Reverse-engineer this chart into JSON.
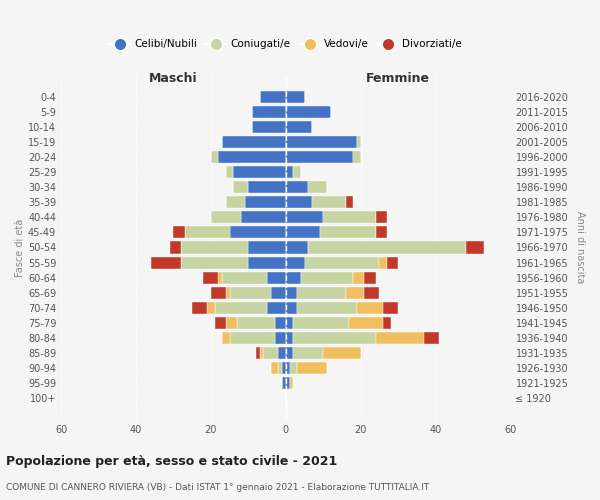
{
  "age_groups": [
    "100+",
    "95-99",
    "90-94",
    "85-89",
    "80-84",
    "75-79",
    "70-74",
    "65-69",
    "60-64",
    "55-59",
    "50-54",
    "45-49",
    "40-44",
    "35-39",
    "30-34",
    "25-29",
    "20-24",
    "15-19",
    "10-14",
    "5-9",
    "0-4"
  ],
  "birth_years": [
    "≤ 1920",
    "1921-1925",
    "1926-1930",
    "1931-1935",
    "1936-1940",
    "1941-1945",
    "1946-1950",
    "1951-1955",
    "1956-1960",
    "1961-1965",
    "1966-1970",
    "1971-1975",
    "1976-1980",
    "1981-1985",
    "1986-1990",
    "1991-1995",
    "1996-2000",
    "2001-2005",
    "2006-2010",
    "2011-2015",
    "2016-2020"
  ],
  "colors": {
    "celibe": "#4472C4",
    "coniugato": "#c5d4a0",
    "vedovo": "#f0c060",
    "divorziato": "#c0392b"
  },
  "maschi": {
    "celibe": [
      0,
      1,
      1,
      2,
      3,
      3,
      5,
      4,
      5,
      10,
      10,
      15,
      12,
      11,
      10,
      14,
      18,
      17,
      9,
      9,
      7
    ],
    "coniugato": [
      0,
      0,
      1,
      4,
      12,
      10,
      14,
      11,
      12,
      18,
      18,
      12,
      8,
      5,
      4,
      2,
      2,
      0,
      0,
      0,
      0
    ],
    "vedovo": [
      0,
      0,
      2,
      1,
      2,
      3,
      2,
      1,
      1,
      0,
      0,
      0,
      0,
      0,
      0,
      0,
      0,
      0,
      0,
      0,
      0
    ],
    "divorziato": [
      0,
      0,
      0,
      1,
      0,
      3,
      4,
      4,
      4,
      8,
      3,
      3,
      0,
      0,
      0,
      0,
      0,
      0,
      0,
      0,
      0
    ]
  },
  "femmine": {
    "nubile": [
      0,
      1,
      1,
      2,
      2,
      2,
      3,
      3,
      4,
      5,
      6,
      9,
      10,
      7,
      6,
      2,
      18,
      19,
      7,
      12,
      5
    ],
    "coniugata": [
      0,
      0,
      2,
      8,
      22,
      15,
      16,
      13,
      14,
      20,
      42,
      15,
      14,
      9,
      5,
      2,
      2,
      1,
      0,
      0,
      0
    ],
    "vedova": [
      0,
      1,
      8,
      10,
      13,
      9,
      7,
      5,
      3,
      2,
      0,
      0,
      0,
      0,
      0,
      0,
      0,
      0,
      0,
      0,
      0
    ],
    "divorziata": [
      0,
      0,
      0,
      0,
      4,
      2,
      4,
      4,
      3,
      3,
      5,
      3,
      3,
      2,
      0,
      0,
      0,
      0,
      0,
      0,
      0
    ]
  },
  "xlim": 60,
  "title": "Popolazione per età, sesso e stato civile - 2021",
  "subtitle": "COMUNE DI CANNERO RIVIERA (VB) - Dati ISTAT 1° gennaio 2021 - Elaborazione TUTTITALIA.IT",
  "ylabel_left": "Fasce di età",
  "ylabel_right": "Anni di nascita",
  "xlabel_maschi": "Maschi",
  "xlabel_femmine": "Femmine",
  "legend_labels": [
    "Celibi/Nubili",
    "Coniugati/e",
    "Vedovi/e",
    "Divorziati/e"
  ],
  "background_color": "#f5f5f5"
}
